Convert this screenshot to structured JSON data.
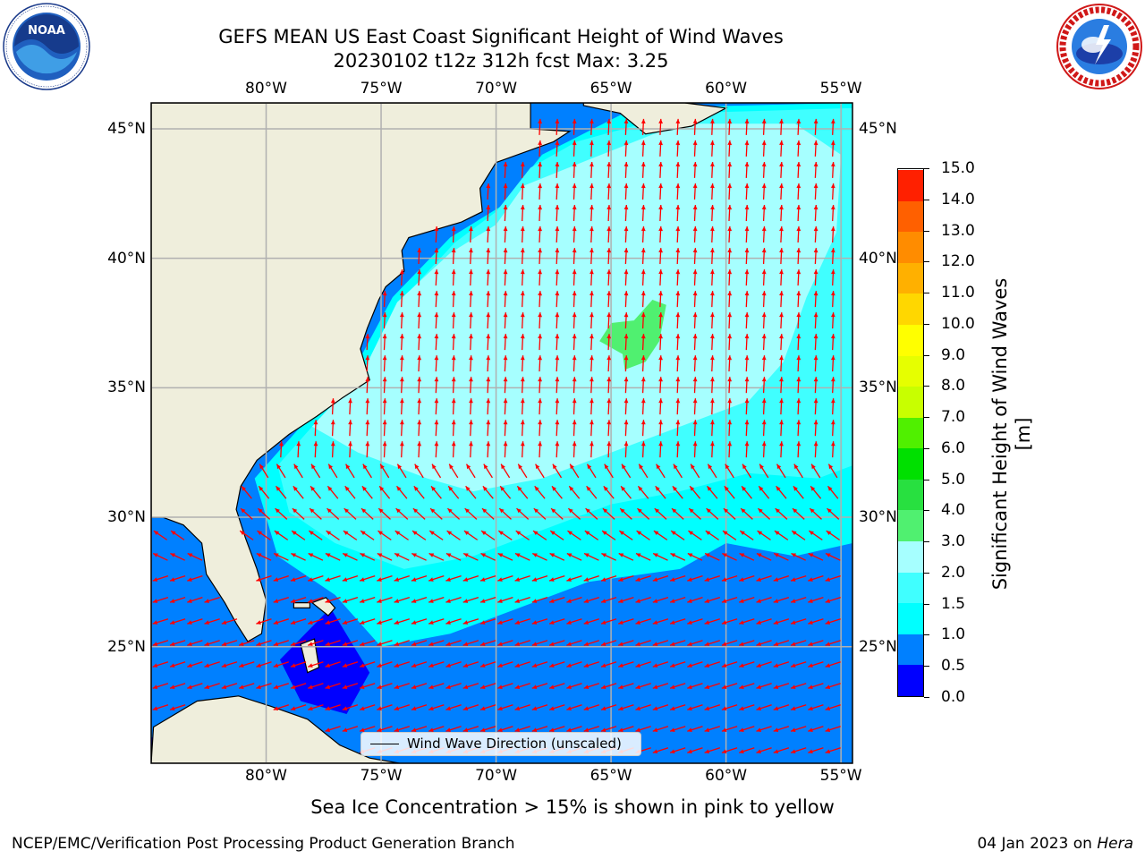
{
  "title": {
    "line1": "GEFS MEAN US East Coast Significant Height of Wind Waves",
    "line2": "20230102 t12z 312h fcst   Max: 3.25"
  },
  "map": {
    "lon_range": [
      -85,
      -54.5
    ],
    "lat_range": [
      20.5,
      46
    ],
    "lon_ticks": [
      "80°W",
      "75°W",
      "70°W",
      "65°W",
      "60°W",
      "55°W"
    ],
    "lon_tick_values": [
      -80,
      -75,
      -70,
      -65,
      -60,
      -55
    ],
    "lat_ticks": [
      "45°N",
      "40°N",
      "35°N",
      "30°N",
      "25°N"
    ],
    "lat_tick_values": [
      45,
      40,
      35,
      30,
      25
    ],
    "grid": true,
    "land_color": "#efeedc",
    "max_value": 3.25
  },
  "legend": {
    "label": "Wind Wave Direction (unscaled)",
    "placement": "lower-center"
  },
  "colorbar": {
    "title": "Significant Height of Wind Waves [m]",
    "ticks": [
      "0.0",
      "0.5",
      "1.0",
      "1.5",
      "2.0",
      "3.0",
      "4.0",
      "5.0",
      "6.0",
      "7.0",
      "8.0",
      "9.0",
      "10.0",
      "11.0",
      "12.0",
      "13.0",
      "14.0",
      "15.0"
    ],
    "colors": [
      "#0000ff",
      "#0080ff",
      "#00ffff",
      "#40ffff",
      "#a6ffff",
      "#50f070",
      "#28e040",
      "#00e000",
      "#50f000",
      "#c8ff00",
      "#e6ff00",
      "#ffff00",
      "#ffd700",
      "#ffb000",
      "#ff8c00",
      "#ff6000",
      "#ff2000"
    ]
  },
  "footnote": "Sea Ice Concentration > 15% is shown in pink to yellow",
  "footer": {
    "left": "NCEP/EMC/Verification Post Processing Product Generation Branch",
    "date": "04 Jan 2023 on ",
    "host": "Hera"
  },
  "logos": {
    "left": "NOAA",
    "right_text": "NATIONAL WEATHER SERVICE"
  }
}
